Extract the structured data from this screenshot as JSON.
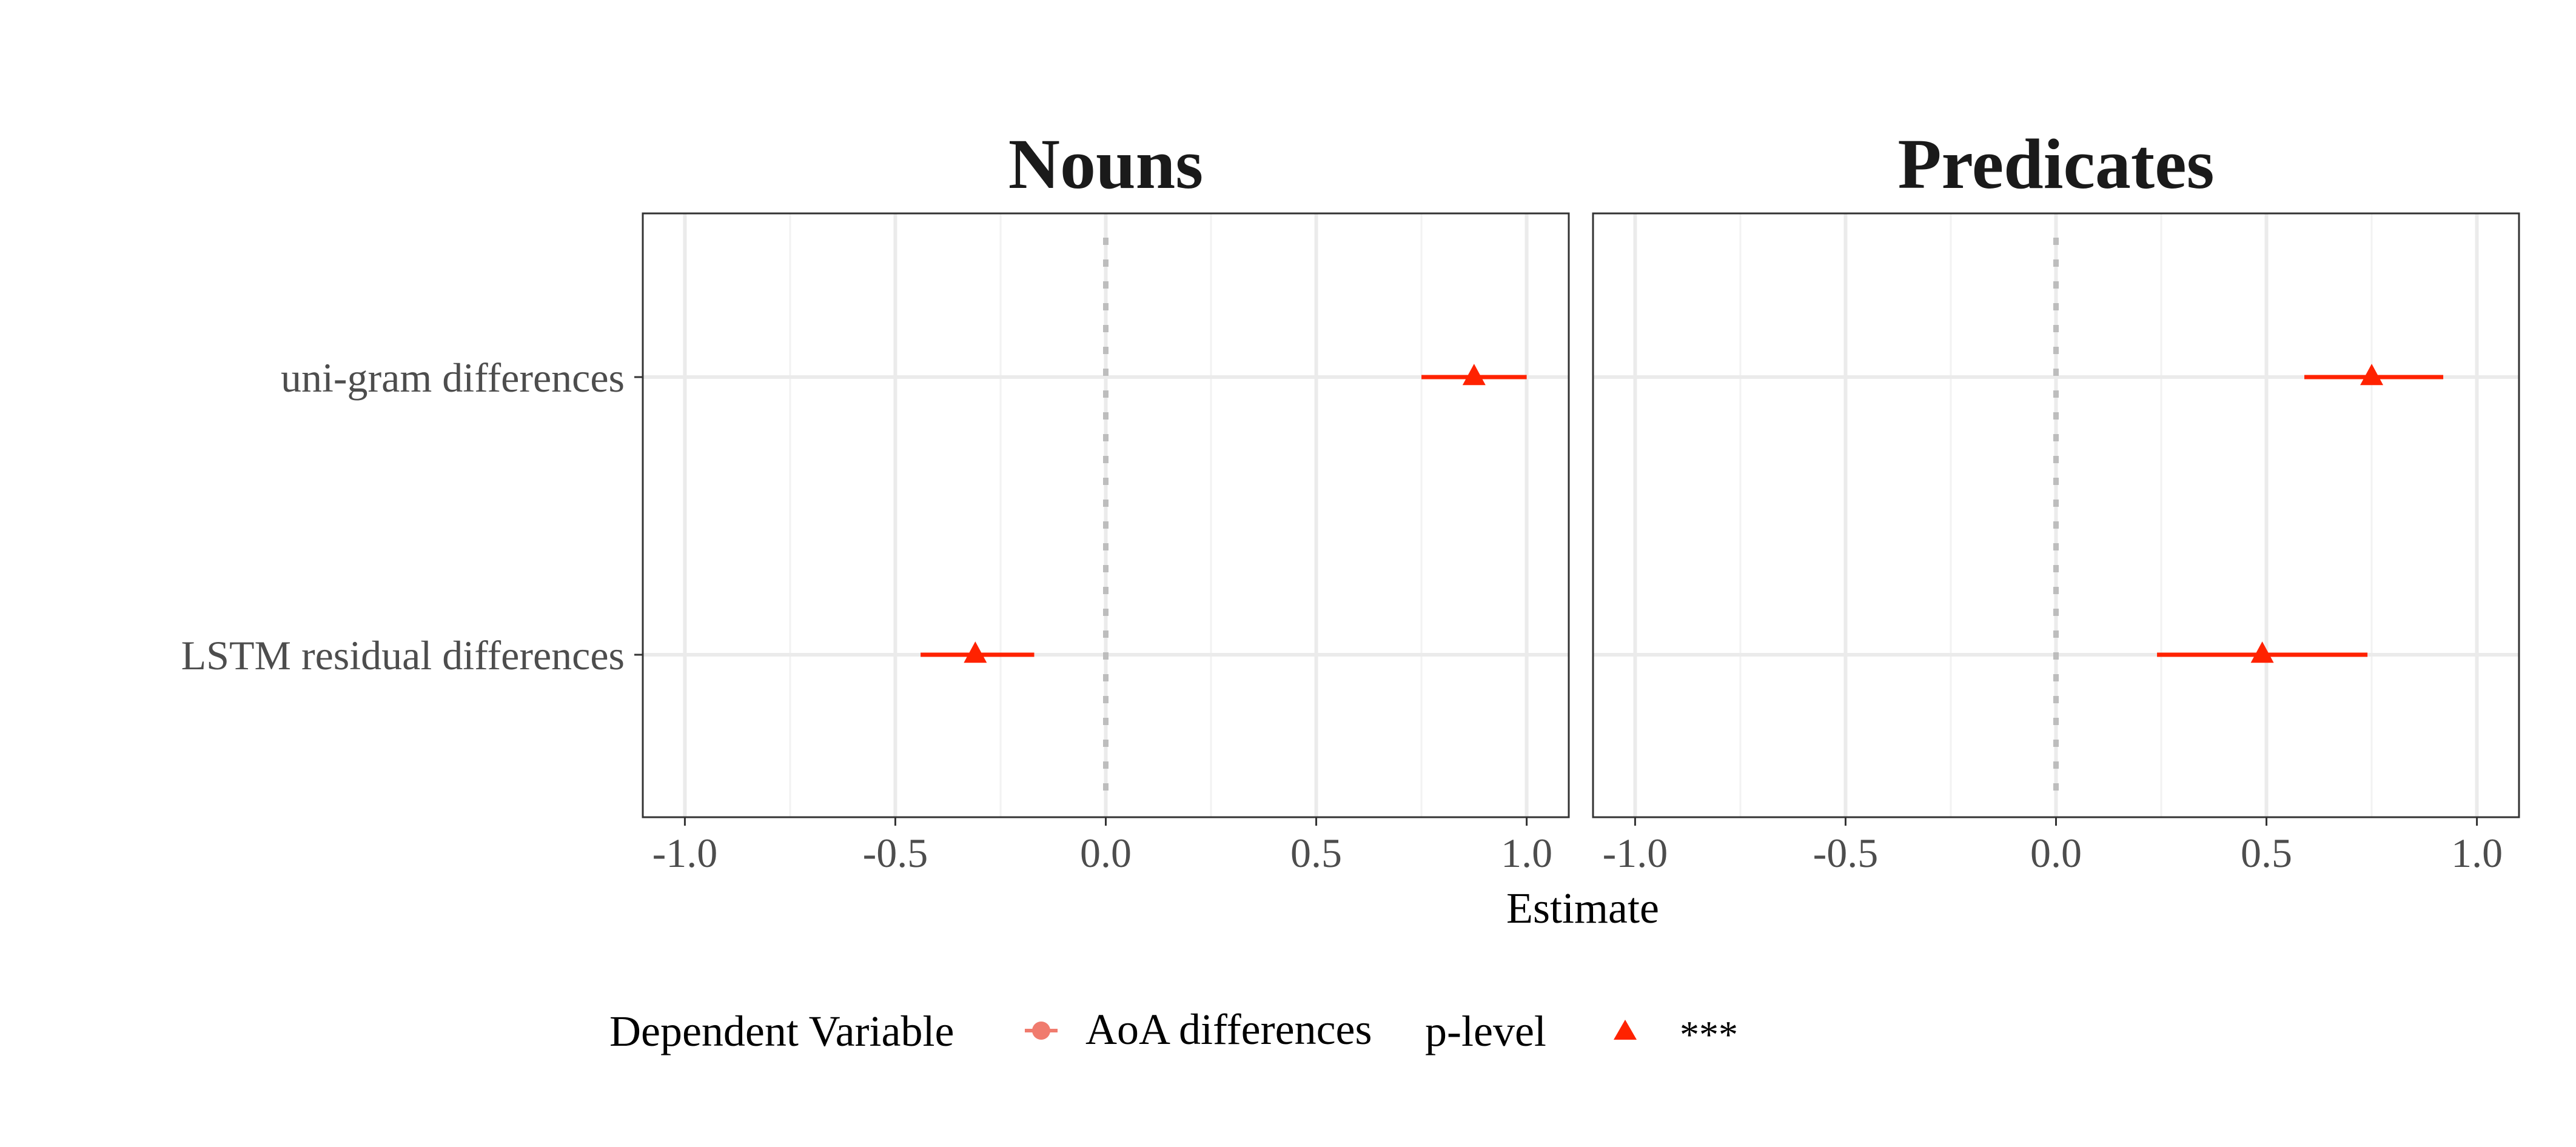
{
  "chart_data": {
    "type": "scatter",
    "xlabel": "Estimate",
    "xlim": [
      -1.1,
      1.1
    ],
    "xticks": [
      -1.0,
      -0.5,
      0.0,
      0.5,
      1.0
    ],
    "xtick_labels": [
      "-1.0",
      "-0.5",
      "0.0",
      "0.5",
      "1.0"
    ],
    "categories": [
      "uni-gram differences",
      "LSTM residual differences"
    ],
    "reference_line": {
      "x": 0,
      "style": "dotted",
      "color": "#bdbdbd"
    },
    "grid": true,
    "point_color": "#ff2200",
    "panels": [
      {
        "title": "Nouns",
        "points": [
          {
            "category": "uni-gram differences",
            "estimate": 0.875,
            "lower": 0.75,
            "upper": 1.0,
            "p_level": "***"
          },
          {
            "category": "LSTM residual differences",
            "estimate": -0.31,
            "lower": -0.44,
            "upper": -0.17,
            "p_level": "***"
          }
        ]
      },
      {
        "title": "Predicates",
        "points": [
          {
            "category": "uni-gram differences",
            "estimate": 0.75,
            "lower": 0.59,
            "upper": 0.92,
            "p_level": "***"
          },
          {
            "category": "LSTM residual differences",
            "estimate": 0.49,
            "lower": 0.24,
            "upper": 0.74,
            "p_level": "***"
          }
        ]
      }
    ],
    "legend": {
      "position": "bottom",
      "dependent_variable_title": "Dependent Variable",
      "dependent_variable_label": "AoA differences",
      "dependent_variable_color": "#f07b6e",
      "p_level_title": "p-level",
      "p_level_label": "***",
      "p_level_color": "#ff2200"
    }
  }
}
